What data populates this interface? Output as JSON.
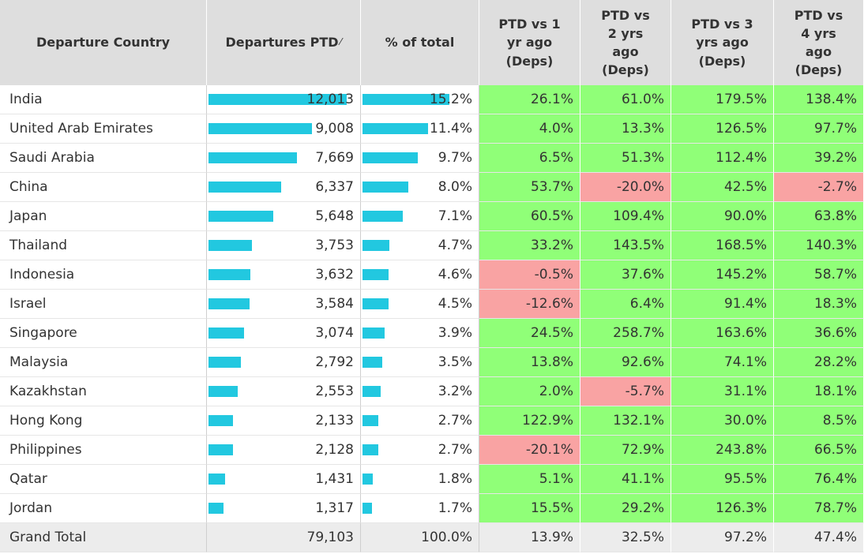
{
  "headers": {
    "country": "Departure Country",
    "departures": "Departures PTD",
    "pct_total": "% of total",
    "vs1": "PTD vs 1\nyr ago\n(Deps)",
    "vs2": "PTD vs\n2 yrs\nago\n(Deps)",
    "vs3": "PTD vs 3\nyrs ago\n(Deps)",
    "vs4": "PTD vs\n4 yrs\nago\n(Deps)"
  },
  "sort_glyph": "⁄",
  "colors": {
    "bar": "#22c8e0",
    "positive": "#90ff78",
    "negative": "#f9a3a3",
    "total_bg": "#ececec"
  },
  "chart_data": {
    "type": "table",
    "columns": [
      "Departure Country",
      "Departures PTD",
      "% of total",
      "PTD vs 1 yr ago (Deps)",
      "PTD vs 2 yrs ago (Deps)",
      "PTD vs 3 yrs ago (Deps)",
      "PTD vs 4 yrs ago (Deps)"
    ],
    "rows": [
      {
        "country": "India",
        "deps": 12013,
        "deps_label": "12,013",
        "pct": 15.2,
        "pct_label": "15.2%",
        "vs1": "26.1%",
        "vs2": "61.0%",
        "vs3": "179.5%",
        "vs4": "138.4%"
      },
      {
        "country": "United Arab Emirates",
        "deps": 9008,
        "deps_label": "9,008",
        "pct": 11.4,
        "pct_label": "11.4%",
        "vs1": "4.0%",
        "vs2": "13.3%",
        "vs3": "126.5%",
        "vs4": "97.7%"
      },
      {
        "country": "Saudi Arabia",
        "deps": 7669,
        "deps_label": "7,669",
        "pct": 9.7,
        "pct_label": "9.7%",
        "vs1": "6.5%",
        "vs2": "51.3%",
        "vs3": "112.4%",
        "vs4": "39.2%"
      },
      {
        "country": "China",
        "deps": 6337,
        "deps_label": "6,337",
        "pct": 8.0,
        "pct_label": "8.0%",
        "vs1": "53.7%",
        "vs2": "-20.0%",
        "vs3": "42.5%",
        "vs4": "-2.7%"
      },
      {
        "country": "Japan",
        "deps": 5648,
        "deps_label": "5,648",
        "pct": 7.1,
        "pct_label": "7.1%",
        "vs1": "60.5%",
        "vs2": "109.4%",
        "vs3": "90.0%",
        "vs4": "63.8%"
      },
      {
        "country": "Thailand",
        "deps": 3753,
        "deps_label": "3,753",
        "pct": 4.7,
        "pct_label": "4.7%",
        "vs1": "33.2%",
        "vs2": "143.5%",
        "vs3": "168.5%",
        "vs4": "140.3%"
      },
      {
        "country": "Indonesia",
        "deps": 3632,
        "deps_label": "3,632",
        "pct": 4.6,
        "pct_label": "4.6%",
        "vs1": "-0.5%",
        "vs2": "37.6%",
        "vs3": "145.2%",
        "vs4": "58.7%"
      },
      {
        "country": "Israel",
        "deps": 3584,
        "deps_label": "3,584",
        "pct": 4.5,
        "pct_label": "4.5%",
        "vs1": "-12.6%",
        "vs2": "6.4%",
        "vs3": "91.4%",
        "vs4": "18.3%"
      },
      {
        "country": "Singapore",
        "deps": 3074,
        "deps_label": "3,074",
        "pct": 3.9,
        "pct_label": "3.9%",
        "vs1": "24.5%",
        "vs2": "258.7%",
        "vs3": "163.6%",
        "vs4": "36.6%"
      },
      {
        "country": "Malaysia",
        "deps": 2792,
        "deps_label": "2,792",
        "pct": 3.5,
        "pct_label": "3.5%",
        "vs1": "13.8%",
        "vs2": "92.6%",
        "vs3": "74.1%",
        "vs4": "28.2%"
      },
      {
        "country": "Kazakhstan",
        "deps": 2553,
        "deps_label": "2,553",
        "pct": 3.2,
        "pct_label": "3.2%",
        "vs1": "2.0%",
        "vs2": "-5.7%",
        "vs3": "31.1%",
        "vs4": "18.1%"
      },
      {
        "country": "Hong Kong",
        "deps": 2133,
        "deps_label": "2,133",
        "pct": 2.7,
        "pct_label": "2.7%",
        "vs1": "122.9%",
        "vs2": "132.1%",
        "vs3": "30.0%",
        "vs4": "8.5%"
      },
      {
        "country": "Philippines",
        "deps": 2128,
        "deps_label": "2,128",
        "pct": 2.7,
        "pct_label": "2.7%",
        "vs1": "-20.1%",
        "vs2": "72.9%",
        "vs3": "243.8%",
        "vs4": "66.5%"
      },
      {
        "country": "Qatar",
        "deps": 1431,
        "deps_label": "1,431",
        "pct": 1.8,
        "pct_label": "1.8%",
        "vs1": "5.1%",
        "vs2": "41.1%",
        "vs3": "95.5%",
        "vs4": "76.4%"
      },
      {
        "country": "Jordan",
        "deps": 1317,
        "deps_label": "1,317",
        "pct": 1.7,
        "pct_label": "1.7%",
        "vs1": "15.5%",
        "vs2": "29.2%",
        "vs3": "126.3%",
        "vs4": "78.7%"
      }
    ],
    "total": {
      "country": "Grand Total",
      "deps_label": "79,103",
      "pct_label": "100.0%",
      "vs1": "13.9%",
      "vs2": "32.5%",
      "vs3": "97.2%",
      "vs4": "47.4%"
    }
  }
}
